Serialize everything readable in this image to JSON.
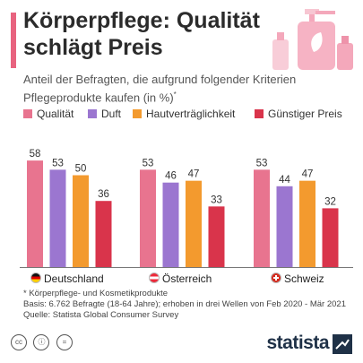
{
  "header": {
    "title": "Körperpflege: Qualität schlägt Preis",
    "subtitle": "Anteil der Befragten, die aufgrund folgender Kriterien Pflegeprodukte kaufen (in %)",
    "subtitle_marker": "*"
  },
  "countries": [
    {
      "name": "Deutschland",
      "flag": "flag-germany-icon"
    },
    {
      "name": "Österreich",
      "flag": "flag-austria-icon"
    },
    {
      "name": "Schweiz",
      "flag": "flag-switzerland-icon"
    }
  ],
  "notes": {
    "footnote": "* Körperpflege- und Kosmetikprodukte",
    "basis": "Basis: 6.762 Befragte (18-64 Jahre); erhoben in drei Wellen von Feb 2020 - Mär 2021",
    "source": "Quelle: Statista Global Consumer Survey"
  },
  "footer": {
    "brand": "statista",
    "icons": [
      "cc-icon",
      "attribution-icon",
      "no-derivatives-icon"
    ]
  },
  "colors": {
    "qualitaet": "#e8748f",
    "duft": "#9b76d0",
    "hautvertraeglichkeit": "#f39a2e",
    "guenstiger_preis": "#d9344b",
    "accent": "#e8637f",
    "brand": "#1f3147"
  },
  "chart_data": {
    "type": "bar",
    "categories": [
      "Deutschland",
      "Österreich",
      "Schweiz"
    ],
    "series": [
      {
        "name": "Qualität",
        "values": [
          58,
          53,
          53
        ]
      },
      {
        "name": "Duft",
        "values": [
          53,
          46,
          44
        ]
      },
      {
        "name": "Hautverträglichkeit",
        "values": [
          50,
          47,
          47
        ]
      },
      {
        "name": "Günstiger Preis",
        "values": [
          36,
          33,
          32
        ]
      }
    ],
    "title": "Körperpflege: Qualität schlägt Preis",
    "xlabel": "",
    "ylabel": "",
    "ylim": [
      0,
      60
    ],
    "legend": "top",
    "grid": false,
    "data_labels": true
  }
}
